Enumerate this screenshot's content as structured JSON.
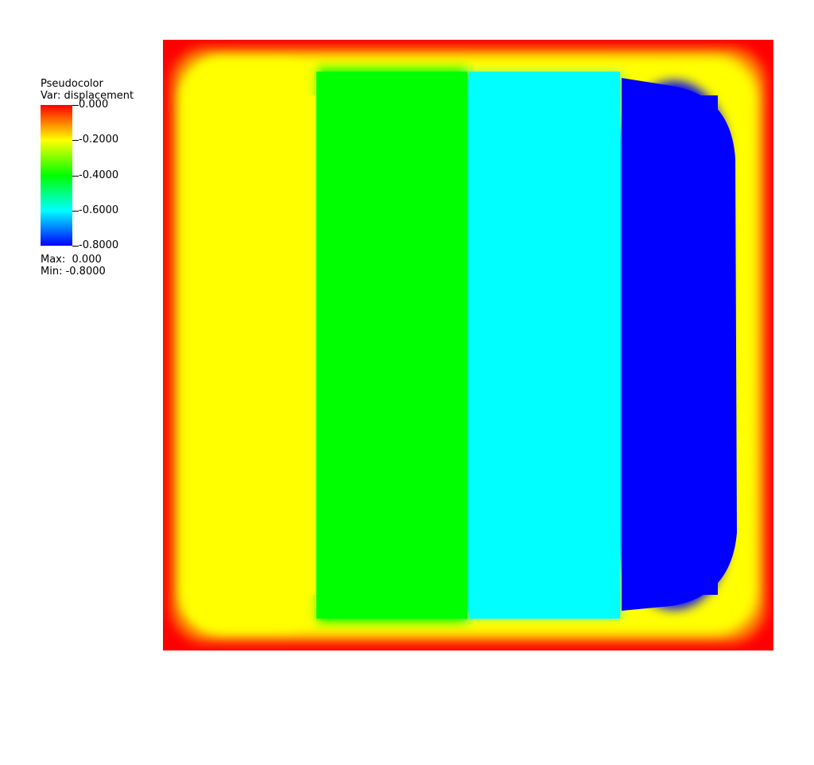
{
  "chart_data": {
    "type": "heatmap",
    "plot_type": "Pseudocolor",
    "variable_label": "Var: displacement",
    "colormap": [
      "#ff0000",
      "#ffff00",
      "#00ff00",
      "#00ffff",
      "#0000ff"
    ],
    "colorbar": {
      "range": [
        0.0,
        -0.8
      ],
      "tick_values": [
        0.0,
        -0.2,
        -0.4,
        -0.6,
        -0.8
      ],
      "tick_labels": [
        "0.000",
        "-0.2000",
        "-0.4000",
        "-0.6000",
        "-0.8000"
      ]
    },
    "max_label": "Max:  0.000",
    "min_label": "Min: -0.8000",
    "bands": [
      {
        "x_range": [
          0.0,
          0.25
        ],
        "value": -0.2
      },
      {
        "x_range": [
          0.25,
          0.5
        ],
        "value": -0.4
      },
      {
        "x_range": [
          0.5,
          0.75
        ],
        "value": -0.6
      },
      {
        "x_range": [
          0.75,
          1.0
        ],
        "value": -0.8
      }
    ],
    "boundary_value": 0.0
  }
}
